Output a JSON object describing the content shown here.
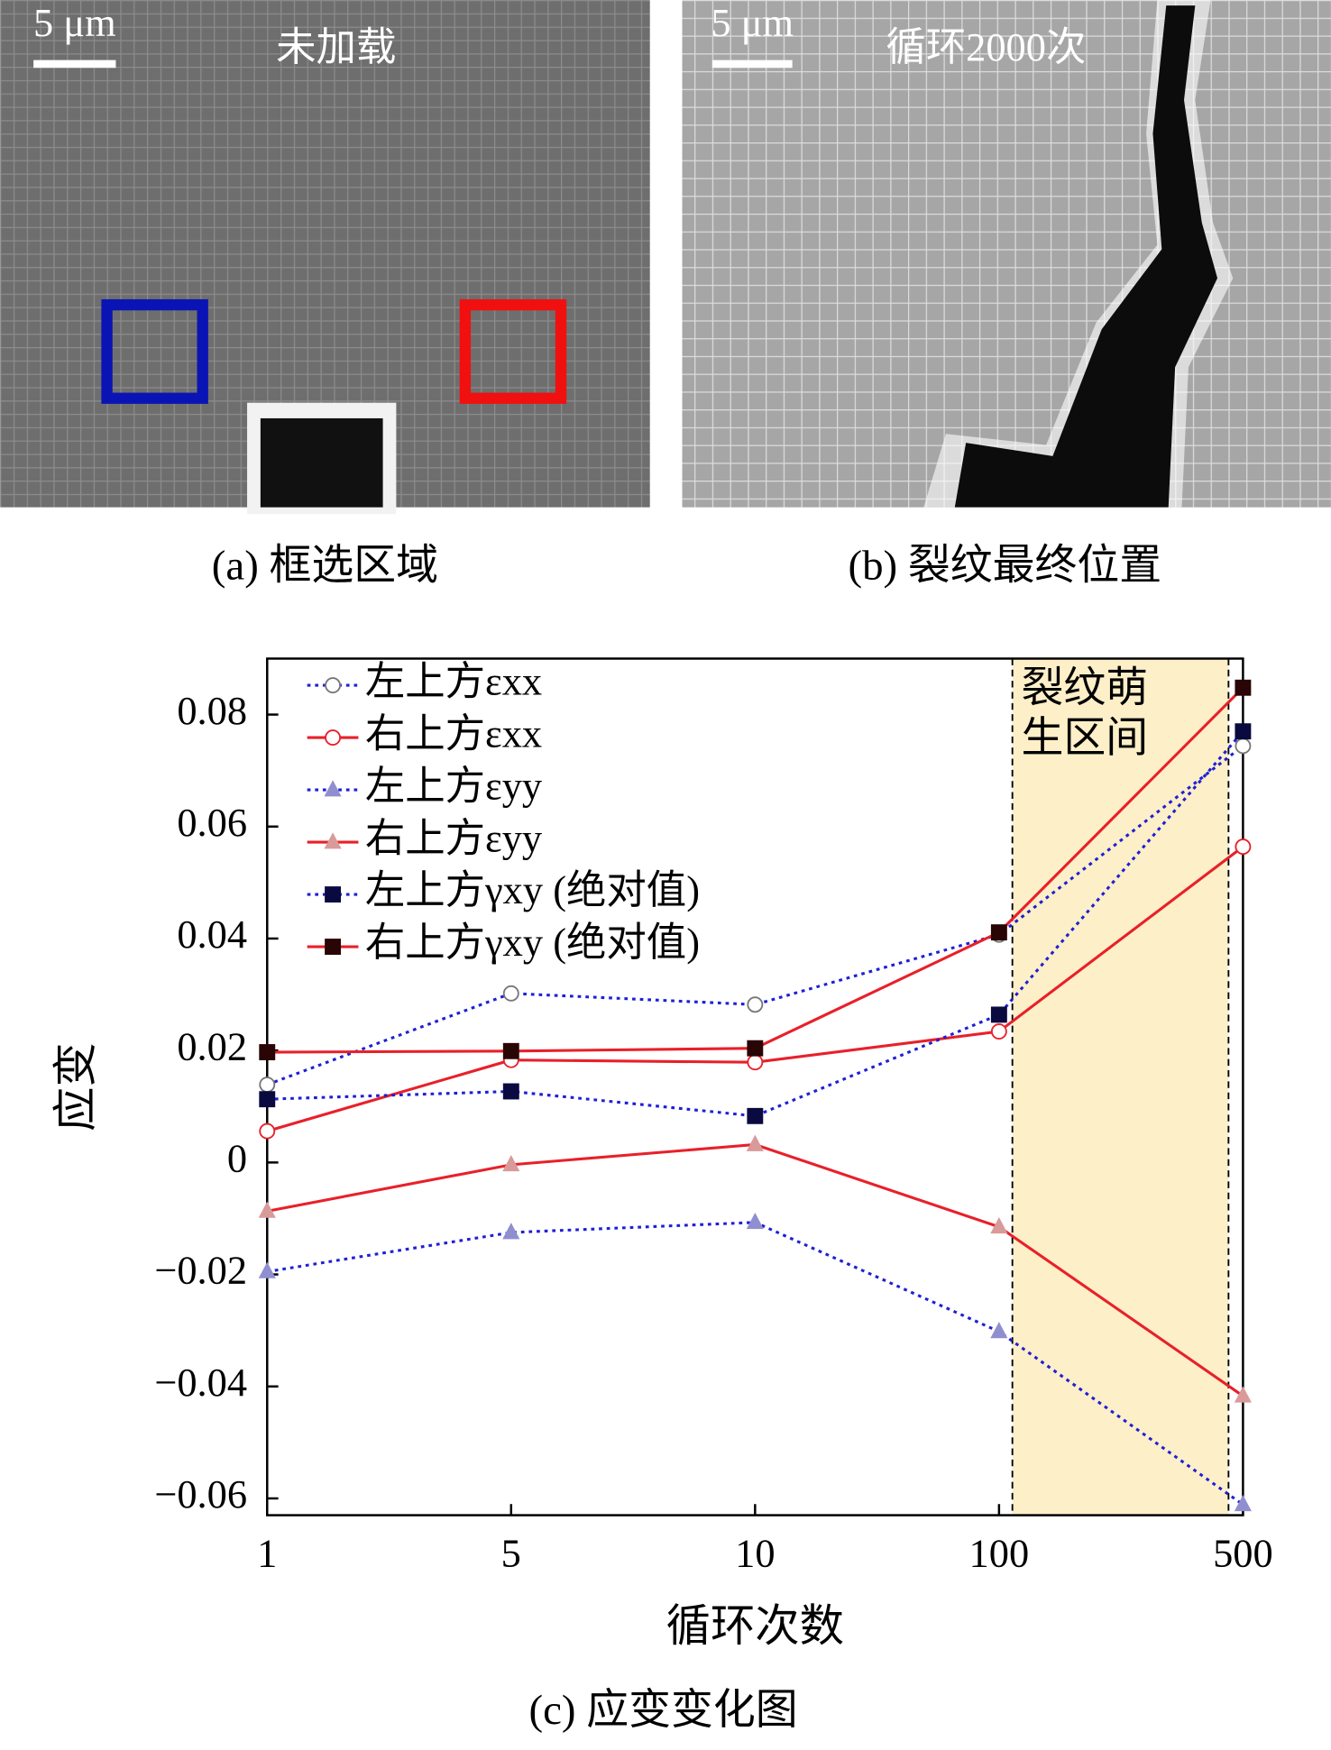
{
  "panels": [
    {
      "scale_bar": "5 μm",
      "label": "未加载",
      "caption": "(a) 框选区域"
    },
    {
      "scale_bar": "5 μm",
      "label": "循环2000次",
      "caption": "(b) 裂纹最终位置"
    }
  ],
  "chart_data": {
    "type": "line",
    "caption": "(c) 应变变化图",
    "x_label": "循环次数",
    "y_label": "应变",
    "categories": [
      "1",
      "5",
      "10",
      "100",
      "500"
    ],
    "ylim": [
      -0.063,
      0.09
    ],
    "yticks": [
      {
        "value": -0.06,
        "label": "−0.06"
      },
      {
        "value": -0.04,
        "label": "−0.04"
      },
      {
        "value": -0.02,
        "label": "−0.02"
      },
      0,
      0.02,
      0.04,
      0.06,
      0.08
    ],
    "annotation": {
      "lines": [
        "裂纹萌",
        "生区间"
      ],
      "color": "#fdefc8"
    },
    "legend": "upper left",
    "series": [
      {
        "name": "左上方εxx",
        "color": "#1f1fd6",
        "line_style": "dotted",
        "marker": "circle",
        "marker_color": "#ffffff",
        "marker_edge": "#777777",
        "values": [
          0.0139,
          0.0302,
          0.0282,
          0.0407,
          0.0744
        ]
      },
      {
        "name": "右上方εxx",
        "color": "#e8202a",
        "line_style": "solid",
        "marker": "circle",
        "marker_color": "#ffffff",
        "marker_edge": "#e8202a",
        "values": [
          0.0056,
          0.0183,
          0.0179,
          0.0234,
          0.0564
        ]
      },
      {
        "name": "左上方εyy",
        "color": "#1f1fd6",
        "line_style": "dotted",
        "marker": "triangle",
        "marker_color": "#8f8fd0",
        "marker_edge": "#8f8fd0",
        "values": [
          -0.0195,
          -0.0125,
          -0.0107,
          -0.0302,
          -0.0611
        ]
      },
      {
        "name": "右上方εyy",
        "color": "#e8202a",
        "line_style": "solid",
        "marker": "triangle",
        "marker_color": "#d99a9a",
        "marker_edge": "#d99a9a",
        "values": [
          -0.0087,
          -0.0004,
          0.0032,
          -0.0115,
          -0.0417
        ]
      },
      {
        "name": "左上方γxy (绝对值)",
        "color": "#1f1fd6",
        "line_style": "dotted",
        "marker": "square",
        "marker_color": "#0a0a40",
        "marker_edge": "#0a0a40",
        "values": [
          0.0113,
          0.0127,
          0.0083,
          0.0264,
          0.077
        ]
      },
      {
        "name": "右上方γxy (绝对值)",
        "color": "#e8202a",
        "line_style": "solid",
        "marker": "square",
        "marker_color": "#2a0505",
        "marker_edge": "#2a0505",
        "values": [
          0.0197,
          0.0199,
          0.0204,
          0.0411,
          0.0848
        ]
      }
    ]
  }
}
